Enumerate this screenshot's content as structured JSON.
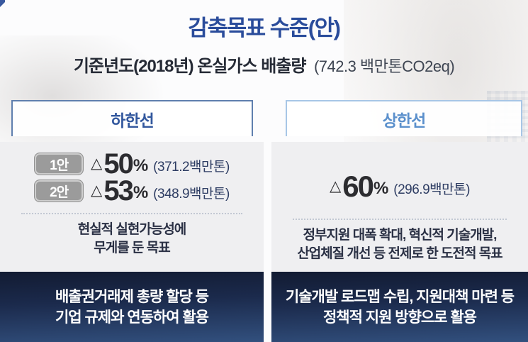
{
  "page": {
    "title": "감축목표 수준(안)",
    "subtitle": {
      "label": "기준년도(2018년) 온실가스 배출량",
      "value": "(742.3 백만톤CO2eq)"
    }
  },
  "columns": {
    "lower": {
      "header": "하한선",
      "options": [
        {
          "badge": "1안",
          "delta": "△",
          "percent": "50",
          "pct_sign": "%",
          "amount": "(371.2백만톤)"
        },
        {
          "badge": "2안",
          "delta": "△",
          "percent": "53",
          "pct_sign": "%",
          "amount": "(348.9백만톤)"
        }
      ],
      "description_line1": "현실적 실현가능성에",
      "description_line2": "무게를 둔 목표",
      "footer_line1": "배출권거래제 총량 할당 등",
      "footer_line2": "기업 규제와 연동하여 활용"
    },
    "upper": {
      "header": "상한선",
      "option": {
        "delta": "△",
        "percent": "60",
        "pct_sign": "%",
        "amount": "(296.9백만톤)"
      },
      "description_line1": "정부지원 대폭 확대, 혁신적 기술개발,",
      "description_line2": "산업체질 개선 등 전제로 한 도전적 목표",
      "footer_line1": "기술개발 로드맵 수립, 지원대책 마련 등",
      "footer_line2": "정책적 지원 방향으로 활용"
    }
  },
  "colors": {
    "title_blue": "#2a4c9b",
    "lower_header_blue": "#33589e",
    "upper_header_blue": "#5b90cc",
    "lower_border": "#5f7fae",
    "upper_border": "#a7c6e6",
    "body_gray": "#efeff1",
    "badge_gray": "#9b9b9b",
    "amount_navy": "#2e3d63",
    "footer_navy_top": "#121b32",
    "footer_navy_bottom": "#32507e"
  }
}
